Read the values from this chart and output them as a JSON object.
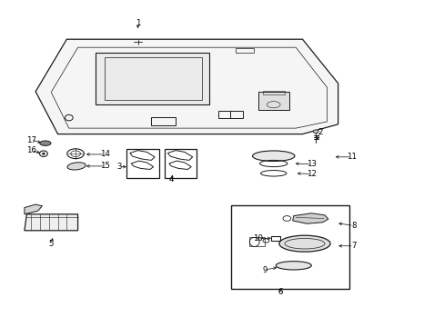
{
  "bg_color": "#ffffff",
  "fig_width": 4.89,
  "fig_height": 3.6,
  "dpi": 100,
  "label_positions": {
    "1": [
      0.31,
      0.93,
      0.31,
      0.905
    ],
    "2": [
      0.72,
      0.595,
      0.71,
      0.565
    ],
    "3": [
      0.268,
      0.49,
      0.29,
      0.49
    ],
    "4": [
      0.385,
      0.452,
      0.392,
      0.468
    ],
    "5": [
      0.115,
      0.255,
      0.12,
      0.28
    ],
    "6": [
      0.63,
      0.108,
      0.63,
      0.125
    ],
    "7": [
      0.795,
      0.248,
      0.755,
      0.248
    ],
    "8": [
      0.795,
      0.31,
      0.755,
      0.318
    ],
    "9": [
      0.595,
      0.175,
      0.628,
      0.183
    ],
    "10": [
      0.58,
      0.27,
      0.615,
      0.272
    ],
    "11": [
      0.79,
      0.52,
      0.748,
      0.52
    ],
    "12": [
      0.7,
      0.468,
      0.662,
      0.47
    ],
    "13": [
      0.7,
      0.498,
      0.658,
      0.5
    ],
    "14": [
      0.236,
      0.528,
      0.188,
      0.528
    ],
    "15": [
      0.236,
      0.492,
      0.188,
      0.492
    ],
    "16": [
      0.07,
      0.54,
      0.096,
      0.53
    ],
    "17": [
      0.07,
      0.572,
      0.098,
      0.562
    ]
  }
}
